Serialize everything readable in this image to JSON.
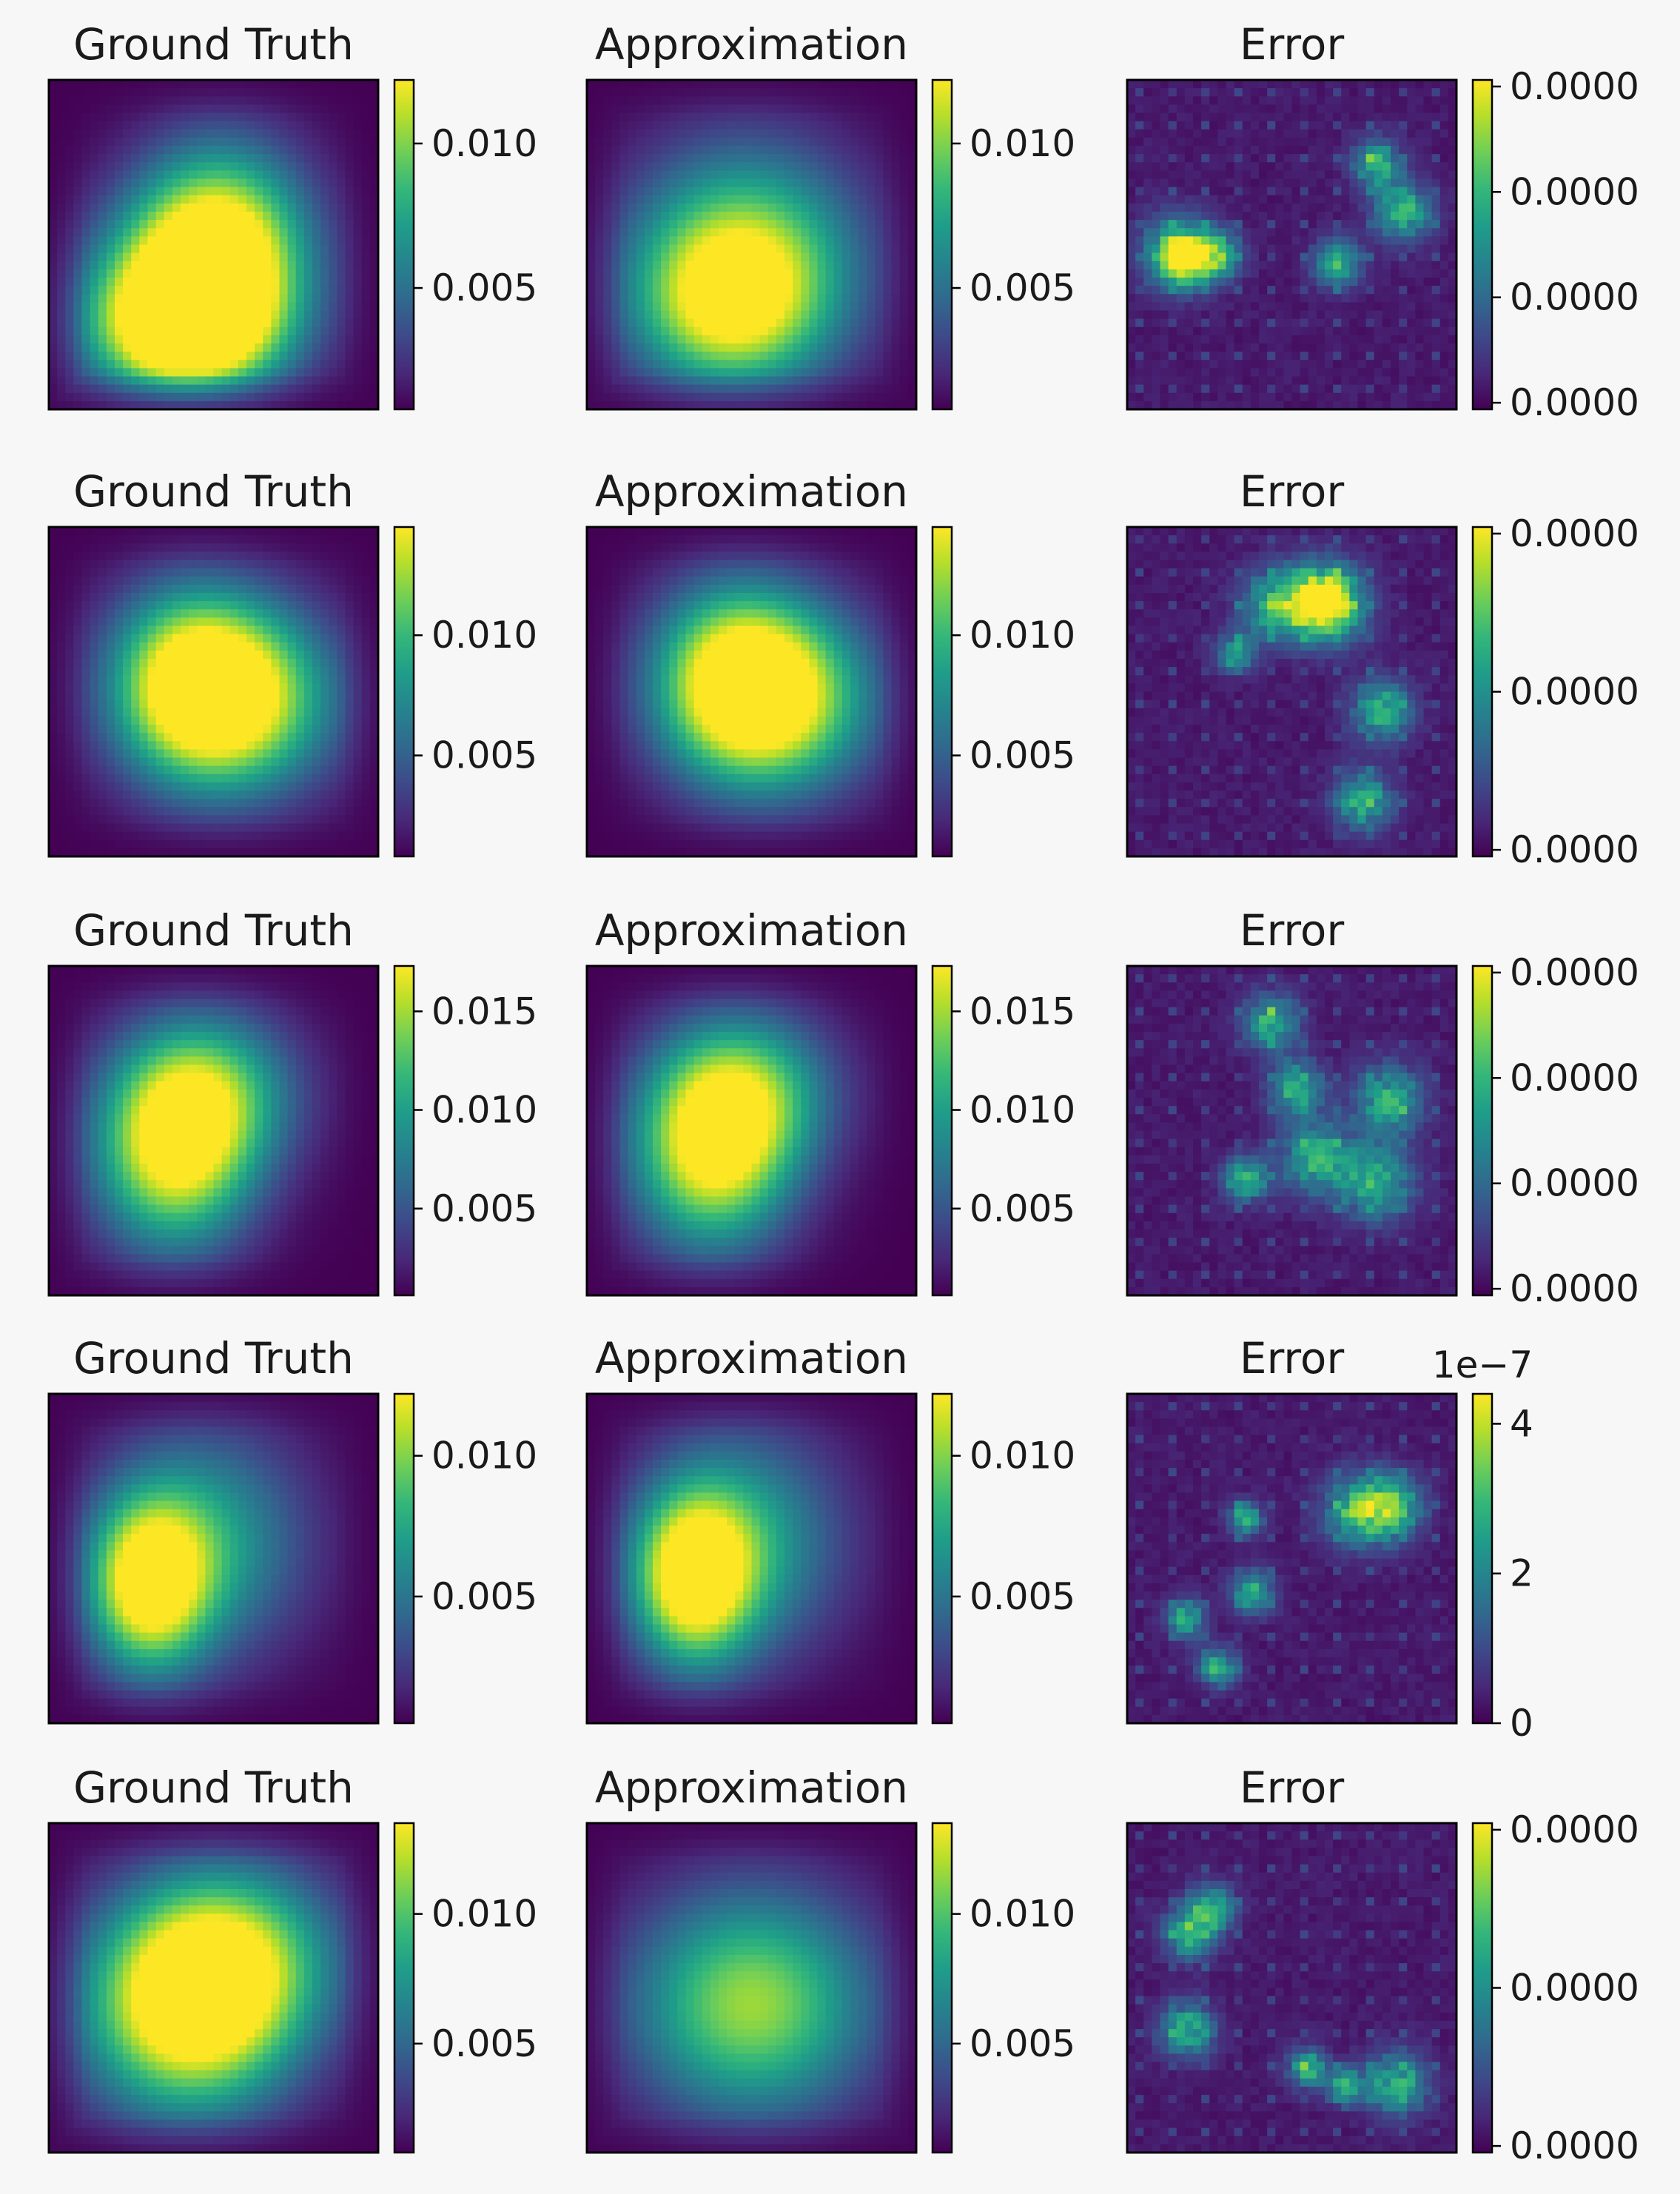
{
  "chart_data": [
    {
      "type": "heatmap",
      "row": 1,
      "title": "Ground Truth",
      "colormap": "viridis",
      "colorbar_ticks": [
        "0.010",
        "0.005"
      ],
      "colorbar_range": [
        0.0008,
        0.0122
      ],
      "blobs": [
        [
          0.44,
          0.66,
          0.3,
          0.26,
          1.0
        ],
        [
          0.52,
          0.45,
          0.26,
          0.28,
          0.8
        ],
        [
          0.4,
          0.78,
          0.28,
          0.2,
          0.7
        ]
      ]
    },
    {
      "type": "heatmap",
      "row": 1,
      "title": "Approximation",
      "colormap": "viridis",
      "colorbar_ticks": [
        "0.010",
        "0.005"
      ],
      "colorbar_range": [
        0.0008,
        0.0122
      ],
      "blobs": [
        [
          0.48,
          0.55,
          0.34,
          0.34,
          0.85
        ],
        [
          0.42,
          0.7,
          0.28,
          0.24,
          0.55
        ]
      ]
    },
    {
      "type": "heatmap",
      "row": 1,
      "title": "Error",
      "colormap": "viridis",
      "colorbar_ticks": [
        "0.0000",
        "0.0000",
        "0.0000",
        "0.0000"
      ],
      "colorbar_range": [
        0,
        1
      ]
    },
    {
      "type": "heatmap",
      "row": 2,
      "title": "Ground Truth",
      "colormap": "viridis",
      "colorbar_ticks": [
        "0.010",
        "0.005"
      ],
      "colorbar_range": [
        0.0008,
        0.0145
      ],
      "blobs": [
        [
          0.56,
          0.52,
          0.3,
          0.28,
          1.0
        ],
        [
          0.42,
          0.46,
          0.24,
          0.28,
          0.65
        ]
      ]
    },
    {
      "type": "heatmap",
      "row": 2,
      "title": "Approximation",
      "colormap": "viridis",
      "colorbar_ticks": [
        "0.010",
        "0.005"
      ],
      "colorbar_range": [
        0.0008,
        0.0145
      ],
      "blobs": [
        [
          0.56,
          0.52,
          0.3,
          0.28,
          1.0
        ],
        [
          0.44,
          0.44,
          0.24,
          0.28,
          0.6
        ]
      ]
    },
    {
      "type": "heatmap",
      "row": 2,
      "title": "Error",
      "colormap": "viridis",
      "colorbar_ticks": [
        "0.0000",
        "0.0000",
        "0.0000"
      ],
      "colorbar_range": [
        0,
        1
      ]
    },
    {
      "type": "heatmap",
      "row": 3,
      "title": "Ground Truth",
      "colormap": "viridis",
      "colorbar_ticks": [
        "0.015",
        "0.010",
        "0.005"
      ],
      "colorbar_range": [
        0.0006,
        0.0173
      ],
      "blobs": [
        [
          0.38,
          0.56,
          0.24,
          0.3,
          1.0
        ],
        [
          0.5,
          0.38,
          0.26,
          0.24,
          0.55
        ]
      ]
    },
    {
      "type": "heatmap",
      "row": 3,
      "title": "Approximation",
      "colormap": "viridis",
      "colorbar_ticks": [
        "0.015",
        "0.010",
        "0.005"
      ],
      "colorbar_range": [
        0.0006,
        0.0173
      ],
      "blobs": [
        [
          0.38,
          0.56,
          0.24,
          0.3,
          1.0
        ],
        [
          0.5,
          0.38,
          0.26,
          0.24,
          0.55
        ]
      ]
    },
    {
      "type": "heatmap",
      "row": 3,
      "title": "Error",
      "colormap": "viridis",
      "colorbar_ticks": [
        "0.0000",
        "0.0000",
        "0.0000",
        "0.0000"
      ],
      "colorbar_range": [
        0,
        1
      ]
    },
    {
      "type": "heatmap",
      "row": 4,
      "title": "Ground Truth",
      "colormap": "viridis",
      "colorbar_ticks": [
        "0.010",
        "0.005"
      ],
      "colorbar_range": [
        0.0005,
        0.0122
      ],
      "blobs": [
        [
          0.3,
          0.58,
          0.18,
          0.26,
          1.0
        ],
        [
          0.48,
          0.45,
          0.3,
          0.34,
          0.55
        ]
      ]
    },
    {
      "type": "heatmap",
      "row": 4,
      "title": "Approximation",
      "colormap": "viridis",
      "colorbar_ticks": [
        "0.010",
        "0.005"
      ],
      "colorbar_range": [
        0.0005,
        0.0122
      ],
      "blobs": [
        [
          0.32,
          0.56,
          0.18,
          0.26,
          1.0
        ],
        [
          0.48,
          0.45,
          0.3,
          0.34,
          0.55
        ]
      ]
    },
    {
      "type": "heatmap",
      "row": 4,
      "title": "Error",
      "colormap": "viridis",
      "colorbar_ticks": [
        "4",
        "2",
        "0"
      ],
      "colorbar_range": [
        0,
        4.4
      ],
      "colorbar_offset": "1e−7"
    },
    {
      "type": "heatmap",
      "row": 5,
      "title": "Ground Truth",
      "colormap": "viridis",
      "colorbar_ticks": [
        "0.010",
        "0.005"
      ],
      "colorbar_range": [
        0.0008,
        0.0135
      ],
      "blobs": [
        [
          0.42,
          0.58,
          0.32,
          0.32,
          1.0
        ],
        [
          0.55,
          0.4,
          0.32,
          0.28,
          0.7
        ]
      ]
    },
    {
      "type": "heatmap",
      "row": 5,
      "title": "Approximation",
      "colormap": "viridis",
      "colorbar_ticks": [
        "0.010",
        "0.005"
      ],
      "colorbar_range": [
        0.0008,
        0.0135
      ],
      "blobs": [
        [
          0.5,
          0.55,
          0.36,
          0.34,
          0.85
        ]
      ]
    },
    {
      "type": "heatmap",
      "row": 5,
      "title": "Error",
      "colormap": "viridis",
      "colorbar_ticks": [
        "0.0000",
        "0.0000",
        "0.0000"
      ],
      "colorbar_range": [
        0,
        1
      ]
    }
  ]
}
